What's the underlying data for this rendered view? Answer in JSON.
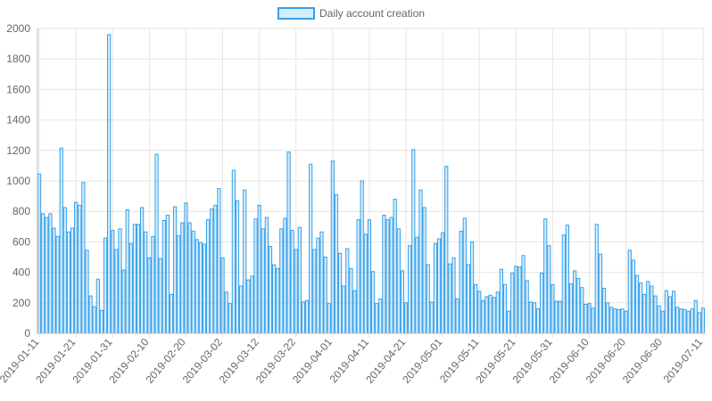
{
  "chart_data": {
    "type": "bar",
    "title": "",
    "xlabel": "",
    "ylabel": "",
    "legend": {
      "position": "top",
      "entries": [
        {
          "label": "Daily account creation"
        }
      ]
    },
    "series": [
      {
        "name": "Daily account creation",
        "color": "#36a2eb",
        "fill": "rgba(54,162,235,0.2)"
      }
    ],
    "ylim": [
      0,
      2000
    ],
    "yticks": [
      0,
      200,
      400,
      600,
      800,
      1000,
      1200,
      1400,
      1600,
      1800,
      2000
    ],
    "grid": true,
    "x_start": "2019-01-11",
    "x_end": "2019-07-11",
    "xtick_labels": [
      "2019-01-11",
      "2019-01-21",
      "2019-01-31",
      "2019-02-10",
      "2019-02-20",
      "2019-03-02",
      "2019-03-12",
      "2019-03-22",
      "2019-04-01",
      "2019-04-11",
      "2019-04-21",
      "2019-05-01",
      "2019-05-11",
      "2019-05-21",
      "2019-05-31",
      "2019-06-10",
      "2019-06-20",
      "2019-06-30",
      "2019-07-11"
    ],
    "values": [
      1045,
      785,
      760,
      785,
      690,
      635,
      1215,
      825,
      665,
      690,
      860,
      840,
      990,
      545,
      245,
      175,
      355,
      150,
      625,
      1960,
      675,
      550,
      685,
      415,
      810,
      590,
      715,
      715,
      825,
      665,
      495,
      635,
      1175,
      490,
      740,
      775,
      255,
      830,
      640,
      725,
      855,
      725,
      670,
      615,
      595,
      585,
      745,
      815,
      840,
      950,
      495,
      270,
      195,
      1070,
      870,
      310,
      940,
      350,
      375,
      750,
      840,
      685,
      760,
      570,
      450,
      425,
      685,
      755,
      1190,
      675,
      550,
      695,
      205,
      215,
      1110,
      550,
      625,
      665,
      500,
      195,
      1130,
      910,
      525,
      310,
      555,
      425,
      280,
      745,
      1000,
      650,
      745,
      405,
      195,
      225,
      775,
      745,
      760,
      880,
      685,
      410,
      200,
      575,
      1205,
      630,
      940,
      825,
      450,
      205,
      590,
      620,
      660,
      1095,
      455,
      495,
      225,
      670,
      755,
      450,
      600,
      320,
      275,
      215,
      240,
      250,
      235,
      270,
      420,
      320,
      145,
      395,
      440,
      435,
      510,
      345,
      205,
      200,
      160,
      395,
      750,
      575,
      320,
      210,
      210,
      645,
      710,
      325,
      410,
      360,
      300,
      190,
      195,
      165,
      715,
      520,
      295,
      200,
      170,
      160,
      155,
      160,
      145,
      545,
      480,
      380,
      330,
      255,
      340,
      310,
      245,
      180,
      145,
      280,
      240,
      275,
      170,
      160,
      155,
      145,
      160,
      215,
      135,
      165
    ]
  }
}
